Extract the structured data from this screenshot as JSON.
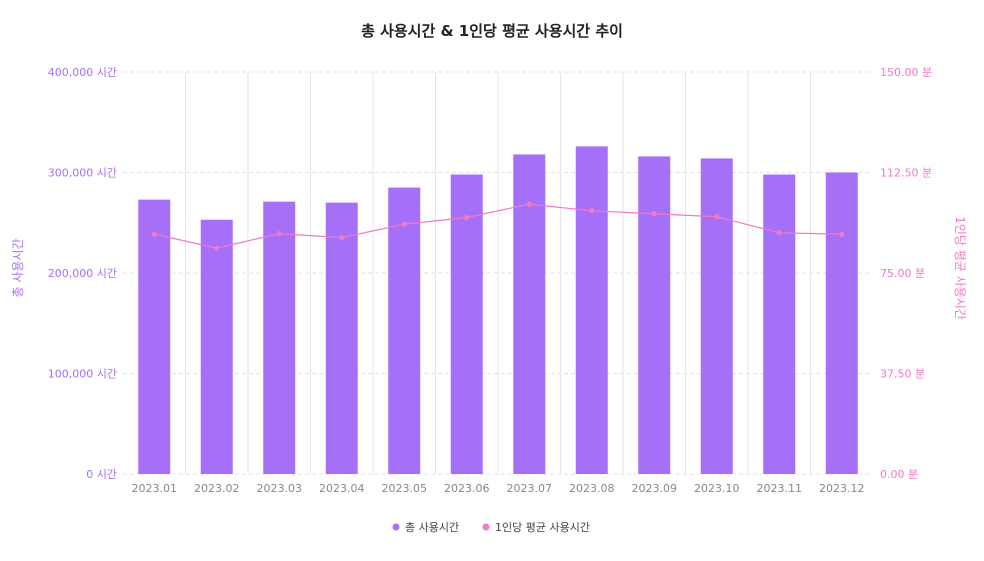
{
  "chart_data": {
    "type": "bar",
    "title": "총 사용시간 & 1인당 평균 사용시간 추이",
    "categories": [
      "2023.01",
      "2023.02",
      "2023.03",
      "2023.04",
      "2023.05",
      "2023.06",
      "2023.07",
      "2023.08",
      "2023.09",
      "2023.10",
      "2023.11",
      "2023.12"
    ],
    "series": [
      {
        "name": "총 사용시간",
        "type": "bar",
        "axis": "left",
        "color": "#a66ff7",
        "values": [
          273000,
          253000,
          271000,
          270000,
          285000,
          298000,
          318000,
          326000,
          316000,
          314000,
          298000,
          300000
        ]
      },
      {
        "name": "1인당 평균 사용시간",
        "type": "line",
        "axis": "right",
        "color": "#f07ac6",
        "values": [
          89.5,
          84.3,
          89.7,
          88.2,
          93.2,
          95.7,
          100.7,
          98.2,
          97.1,
          96.0,
          90.0,
          89.5
        ]
      }
    ],
    "y_left": {
      "label": "총 사용시간",
      "range": [
        0,
        400000
      ],
      "ticks": [
        "0 시간",
        "100,000 시간",
        "200,000 시간",
        "300,000 시간",
        "400,000 시간"
      ],
      "color": "#a66ff7"
    },
    "y_right": {
      "label": "1인당 평균 사용시간",
      "range": [
        0,
        150
      ],
      "ticks": [
        "0.00 분",
        "37.50 분",
        "75.00 분",
        "112.50 분",
        "150.00 분"
      ],
      "color": "#f07ac6"
    },
    "grid": true,
    "legend": "bottom-center"
  }
}
